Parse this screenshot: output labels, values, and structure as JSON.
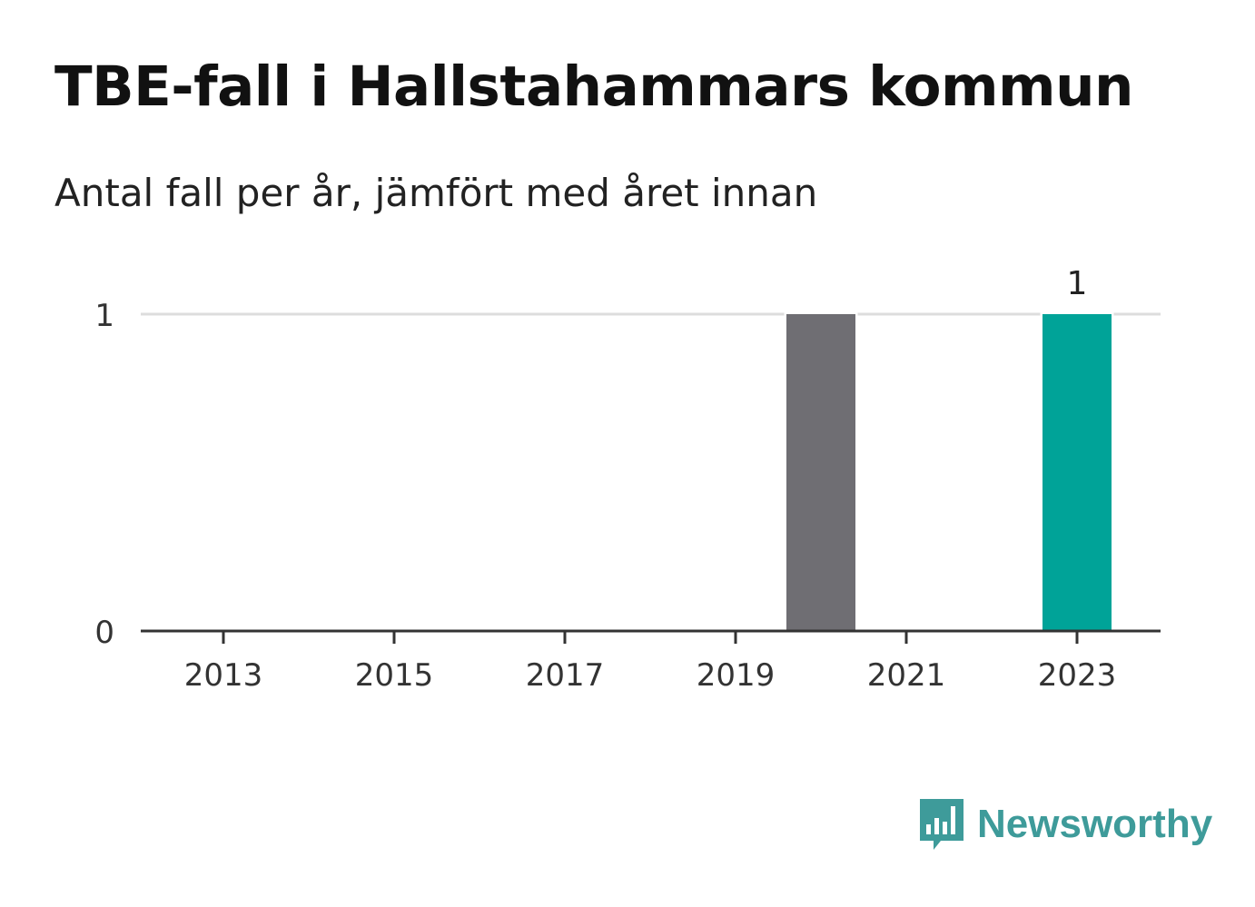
{
  "header": {
    "title": "TBE-fall i Hallstahammars kommun",
    "subtitle": "Antal fall per år, jämfört med året innan"
  },
  "brand": {
    "name": "Newsworthy",
    "icon": "newsworthy-bars-icon",
    "color": "#3e9b9a"
  },
  "chart_data": {
    "type": "bar",
    "categories": [
      "2013",
      "2014",
      "2015",
      "2016",
      "2017",
      "2018",
      "2019",
      "2020",
      "2021",
      "2022",
      "2023"
    ],
    "values": [
      0,
      0,
      0,
      0,
      0,
      0,
      0,
      1,
      0,
      0,
      1
    ],
    "x_tick_labels": [
      "2013",
      "2015",
      "2017",
      "2019",
      "2021",
      "2023"
    ],
    "y_ticks": [
      0,
      1
    ],
    "ylim": [
      0,
      1
    ],
    "grid": true,
    "data_labels": [
      {
        "category": "2023",
        "text": "1"
      }
    ],
    "colors": {
      "previous": "#6f6e73",
      "current": "#00a398",
      "grid": "#dddddd",
      "axis": "#333333",
      "text": "#333333"
    },
    "highlight_category": "2023",
    "comparison_category": "2020",
    "title": "TBE-fall i Hallstahammars kommun",
    "xlabel": "",
    "ylabel": ""
  }
}
